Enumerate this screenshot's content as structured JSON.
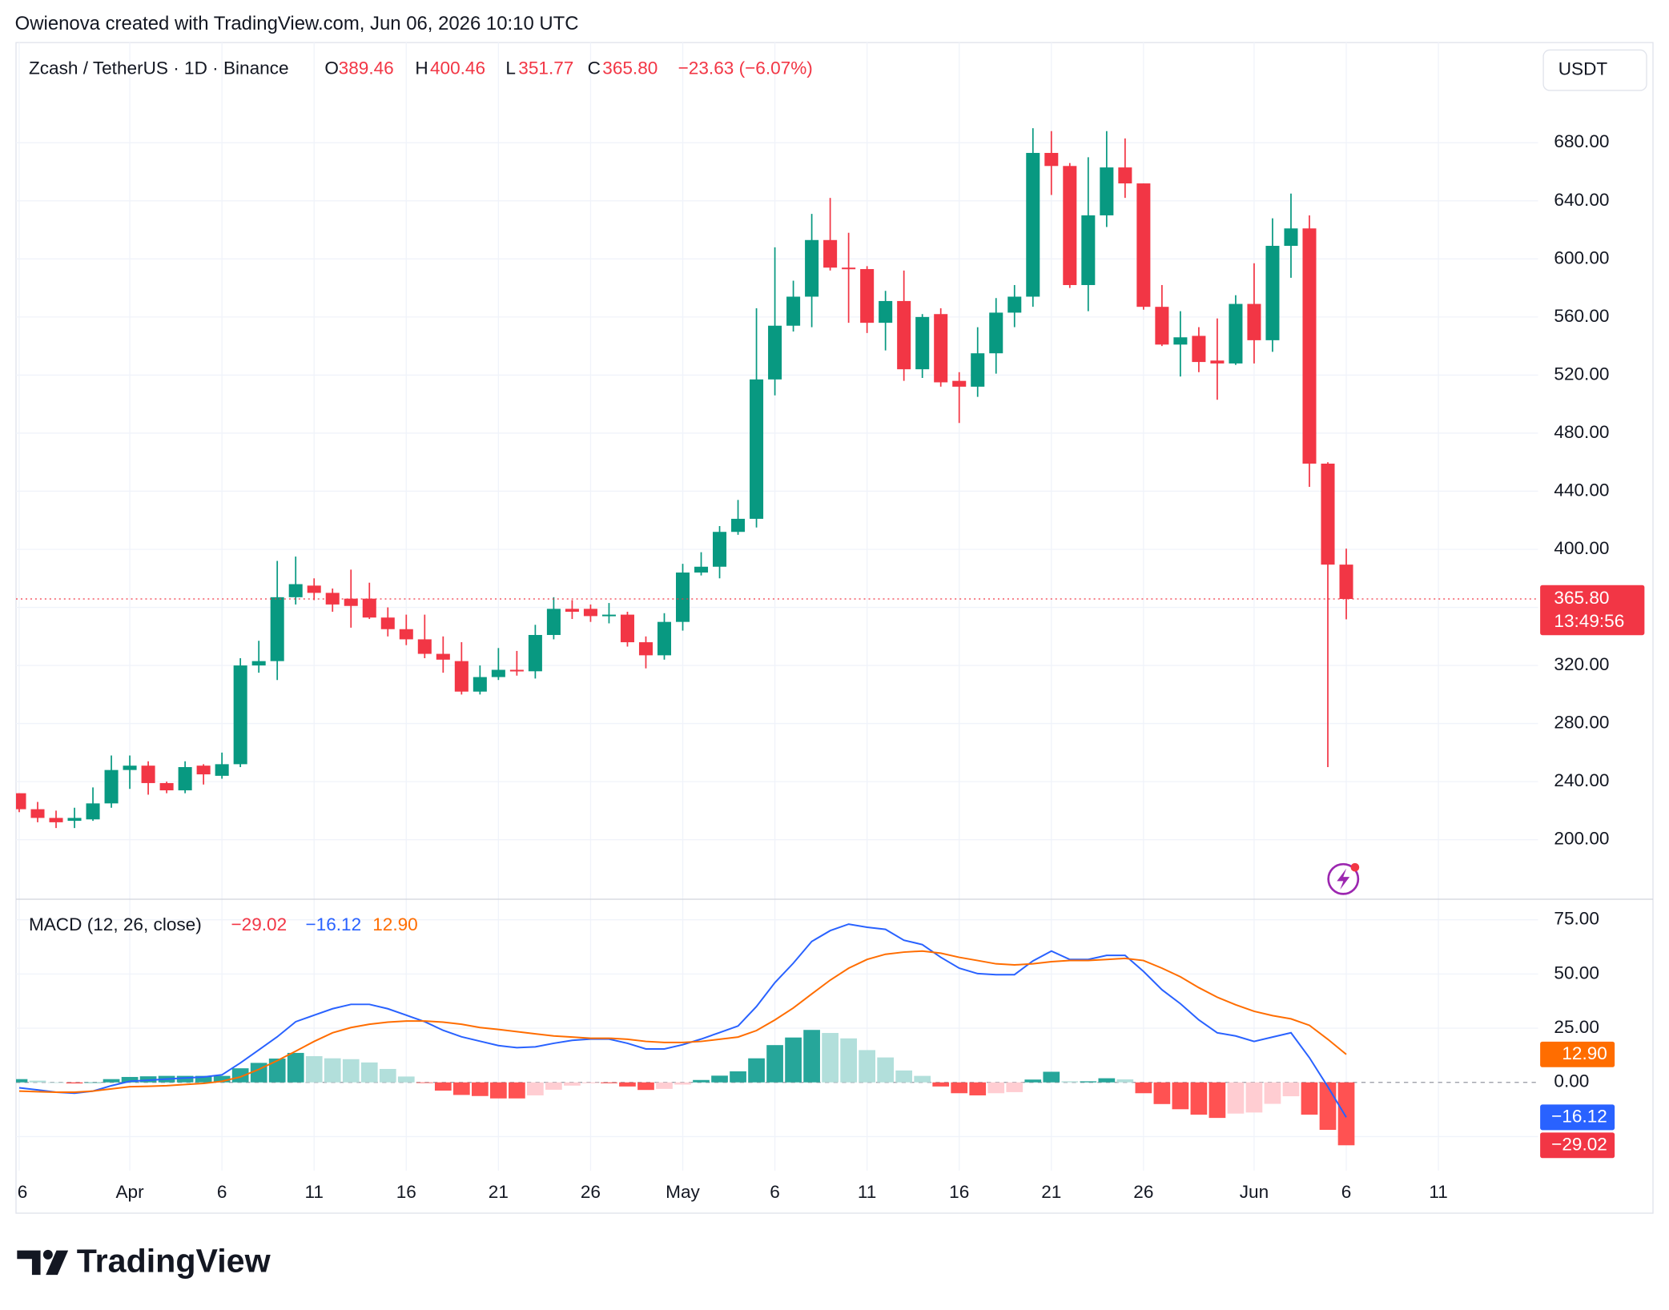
{
  "caption": "Owienova created with TradingView.com, Jun 06, 2026 10:10 UTC",
  "currency": "USDT",
  "brand": "TradingView",
  "chart_data": [
    {
      "type": "candlestick",
      "title": "Zcash / TetherUS · 1D · Binance",
      "ohlc_labels": [
        "O",
        "H",
        "L",
        "C"
      ],
      "change": "−23.63 (−6.07%)",
      "price_tag": {
        "label": "365.80",
        "countdown": "13:49:56"
      },
      "colors": {
        "up": "#089981",
        "down": "#f23645"
      },
      "x": [
        "2026-03-26",
        "2026-03-27",
        "2026-03-28",
        "2026-03-29",
        "2026-03-30",
        "2026-03-31",
        "2026-04-01",
        "2026-04-02",
        "2026-04-03",
        "2026-04-04",
        "2026-04-05",
        "2026-04-06",
        "2026-04-07",
        "2026-04-08",
        "2026-04-09",
        "2026-04-10",
        "2026-04-11",
        "2026-04-12",
        "2026-04-13",
        "2026-04-14",
        "2026-04-15",
        "2026-04-16",
        "2026-04-17",
        "2026-04-18",
        "2026-04-19",
        "2026-04-20",
        "2026-04-21",
        "2026-04-22",
        "2026-04-23",
        "2026-04-24",
        "2026-04-25",
        "2026-04-26",
        "2026-04-27",
        "2026-04-28",
        "2026-04-29",
        "2026-04-30",
        "2026-05-01",
        "2026-05-02",
        "2026-05-03",
        "2026-05-04",
        "2026-05-05",
        "2026-05-06",
        "2026-05-07",
        "2026-05-08",
        "2026-05-09",
        "2026-05-10",
        "2026-05-11",
        "2026-05-12",
        "2026-05-13",
        "2026-05-14",
        "2026-05-15",
        "2026-05-16",
        "2026-05-17",
        "2026-05-18",
        "2026-05-19",
        "2026-05-20",
        "2026-05-21",
        "2026-05-22",
        "2026-05-23",
        "2026-05-24",
        "2026-05-25",
        "2026-05-26",
        "2026-05-27",
        "2026-05-28",
        "2026-05-29",
        "2026-05-30",
        "2026-05-31",
        "2026-06-01",
        "2026-06-02",
        "2026-06-03",
        "2026-06-04",
        "2026-06-05",
        "2026-06-06"
      ],
      "open": [
        232,
        221,
        215,
        213,
        214,
        225,
        248,
        251,
        239,
        234,
        251,
        244,
        252,
        320,
        323,
        367,
        375,
        370,
        366,
        366,
        353,
        345,
        338,
        328,
        323,
        302,
        312,
        317,
        316,
        341,
        359,
        359,
        354,
        355,
        336,
        327,
        350,
        384,
        388,
        412,
        421,
        517,
        554,
        574,
        613,
        594,
        593,
        556,
        571,
        524,
        562,
        516,
        512,
        535,
        563,
        574,
        673,
        664,
        582,
        630,
        663,
        652,
        567,
        541,
        547,
        530,
        528,
        569,
        544,
        609,
        621,
        459,
        389.46
      ],
      "high": [
        232,
        226,
        220,
        222,
        236,
        258,
        258,
        254,
        240,
        254,
        252,
        260,
        325,
        337,
        392,
        395,
        380,
        373,
        386,
        377,
        360,
        355,
        355,
        340,
        336,
        320,
        332,
        330,
        348,
        367,
        365,
        362,
        363,
        357,
        340,
        356,
        390,
        398,
        416,
        434,
        566,
        608,
        585,
        631,
        642,
        618,
        595,
        578,
        592,
        562,
        566,
        522,
        553,
        573,
        582,
        690,
        688,
        666,
        670,
        688,
        683,
        652,
        582,
        564,
        553,
        559,
        575,
        597,
        628,
        645,
        630,
        460,
        400.46
      ],
      "low": [
        219,
        212,
        208,
        208,
        213,
        222,
        235,
        231,
        232,
        232,
        238,
        242,
        250,
        315,
        310,
        362,
        365,
        357,
        346,
        352,
        340,
        334,
        325,
        315,
        300,
        300,
        310,
        313,
        311,
        338,
        352,
        350,
        349,
        333,
        318,
        324,
        344,
        382,
        380,
        410,
        415,
        506,
        550,
        553,
        592,
        556,
        549,
        537,
        516,
        518,
        512,
        487,
        505,
        521,
        553,
        567,
        644,
        580,
        564,
        622,
        642,
        565,
        540,
        519,
        522,
        503,
        527,
        528,
        536,
        587,
        443,
        250,
        351.77
      ],
      "close": [
        221,
        215,
        212,
        215,
        225,
        248,
        251,
        239,
        234,
        250,
        245,
        252,
        320,
        323,
        367,
        376,
        370,
        362,
        361,
        353,
        345,
        338,
        328,
        324,
        302,
        312,
        317,
        316,
        341,
        359,
        357,
        354,
        355,
        336,
        327,
        350,
        384,
        388,
        412,
        421,
        517,
        554,
        574,
        613,
        594,
        593,
        556,
        571,
        524,
        560,
        515,
        512,
        535,
        563,
        574,
        673,
        664,
        582,
        630,
        663,
        652,
        567,
        541,
        546,
        529,
        528,
        569,
        544,
        609,
        621,
        459,
        389.46,
        365.8
      ],
      "xlim": [
        "2026-03-26",
        "2026-06-16"
      ],
      "xticks": [
        {
          "value": "2026-03-26",
          "label": "6"
        },
        {
          "value": "2026-04-01",
          "label": "Apr"
        },
        {
          "value": "2026-04-06",
          "label": "6"
        },
        {
          "value": "2026-04-11",
          "label": "11"
        },
        {
          "value": "2026-04-16",
          "label": "16"
        },
        {
          "value": "2026-04-21",
          "label": "21"
        },
        {
          "value": "2026-04-26",
          "label": "26"
        },
        {
          "value": "2026-05-01",
          "label": "May"
        },
        {
          "value": "2026-05-06",
          "label": "6"
        },
        {
          "value": "2026-05-11",
          "label": "11"
        },
        {
          "value": "2026-05-16",
          "label": "16"
        },
        {
          "value": "2026-05-21",
          "label": "21"
        },
        {
          "value": "2026-05-26",
          "label": "26"
        },
        {
          "value": "2026-06-01",
          "label": "Jun"
        },
        {
          "value": "2026-06-06",
          "label": "6"
        },
        {
          "value": "2026-06-11",
          "label": "11"
        }
      ],
      "ylim": [
        159,
        749
      ],
      "yticks": [
        {
          "value": 200,
          "label": "200.00"
        },
        {
          "value": 240,
          "label": "240.00"
        },
        {
          "value": 280,
          "label": "280.00"
        },
        {
          "value": 320,
          "label": "320.00"
        },
        {
          "value": 360,
          "label": "360.00"
        },
        {
          "value": 400,
          "label": "400.00"
        },
        {
          "value": 440,
          "label": "440.00"
        },
        {
          "value": 480,
          "label": "480.00"
        },
        {
          "value": 520,
          "label": "520.00"
        },
        {
          "value": 560,
          "label": "560.00"
        },
        {
          "value": 600,
          "label": "600.00"
        },
        {
          "value": 640,
          "label": "640.00"
        },
        {
          "value": 680,
          "label": "680.00"
        }
      ],
      "grid": true
    },
    {
      "type": "macd",
      "title": "MACD (12, 26, close)",
      "series": [
        {
          "type": "bar",
          "color": "#f23645",
          "colors": {
            "rising_positive": "#26a69a",
            "falling_positive": "#b2dfdb",
            "falling_negative": "#ff5252",
            "rising_negative": "#ffcdd2"
          },
          "values": [
            1.5,
            0.8,
            0,
            -0.5,
            0,
            1.5,
            2.5,
            2.8,
            3,
            3,
            3,
            3,
            6.5,
            9,
            11,
            13.6,
            12.1,
            11.1,
            10.7,
            9.2,
            6.2,
            2.7,
            -0.3,
            -3.8,
            -5.8,
            -6.3,
            -7.4,
            -7.4,
            -6,
            -3.4,
            -1.5,
            -0.4,
            -0.4,
            -1.9,
            -3.5,
            -3,
            -1,
            1.1,
            3.1,
            5.1,
            11.1,
            17.2,
            20.7,
            24.2,
            22.8,
            20.3,
            14.9,
            11.5,
            5.5,
            3,
            -1.9,
            -5,
            -6,
            -5,
            -4.5,
            1.3,
            4.9,
            0.5,
            0.5,
            1.9,
            1.4,
            -5,
            -10,
            -12.4,
            -14.9,
            -16.4,
            -14.4,
            -13.9,
            -9.9,
            -6.4,
            -14.9,
            -21.9,
            -29.02
          ],
          "last_label": "−29.02"
        },
        {
          "type": "line",
          "color": "#2962ff",
          "values": [
            -2.5,
            -3.5,
            -4.5,
            -5,
            -4,
            -1.5,
            0.5,
            1,
            1.5,
            2,
            2.5,
            3.5,
            9,
            15,
            21,
            28,
            31,
            34,
            36,
            36,
            34,
            31,
            28,
            24,
            21,
            19,
            17,
            16,
            16.4,
            18,
            19.4,
            20,
            20,
            18,
            15.4,
            15.4,
            17.4,
            20,
            23,
            26,
            35,
            46,
            55,
            65,
            70,
            73,
            71.6,
            70.6,
            65.6,
            63.6,
            57.7,
            52.7,
            50.2,
            49.7,
            49.7,
            56,
            60.6,
            56.7,
            56.7,
            58.6,
            58.6,
            51.2,
            42.7,
            36.3,
            28.8,
            22.9,
            21.4,
            18.9,
            20.9,
            22.9,
            11.4,
            -2,
            -16.12
          ],
          "last_label": "−16.12"
        },
        {
          "type": "line",
          "color": "#ff6d00",
          "values": [
            -4,
            -4.3,
            -4.5,
            -4.5,
            -4,
            -3,
            -2,
            -1.8,
            -1.5,
            -1,
            -0.5,
            0.5,
            2.5,
            6,
            10,
            14.4,
            18.9,
            22.9,
            25.3,
            26.8,
            27.8,
            28.3,
            28.3,
            27.8,
            26.8,
            25.3,
            24.4,
            23.4,
            22.4,
            21.4,
            20.9,
            20.4,
            20.4,
            19.9,
            18.9,
            18.4,
            18.4,
            18.9,
            19.9,
            20.9,
            23.9,
            28.8,
            34.3,
            40.8,
            47.2,
            52.7,
            56.7,
            59.1,
            60.1,
            60.6,
            59.6,
            57.7,
            56.2,
            54.7,
            54.2,
            54.7,
            55.7,
            56.2,
            56.2,
            56.7,
            57.2,
            56.2,
            52.7,
            48.7,
            43.7,
            39.3,
            35.8,
            32.8,
            30.8,
            29.3,
            26.3,
            19.9,
            12.9
          ],
          "last_label": "12.90"
        }
      ],
      "ylim": [
        -40.7,
        84.5
      ],
      "yticks": [
        {
          "value": -25,
          "label": null
        },
        {
          "value": 0,
          "label": "0.00"
        },
        {
          "value": 25,
          "label": "25.00"
        },
        {
          "value": 50,
          "label": "50.00"
        },
        {
          "value": 75,
          "label": "75.00"
        }
      ],
      "grid": true
    }
  ]
}
